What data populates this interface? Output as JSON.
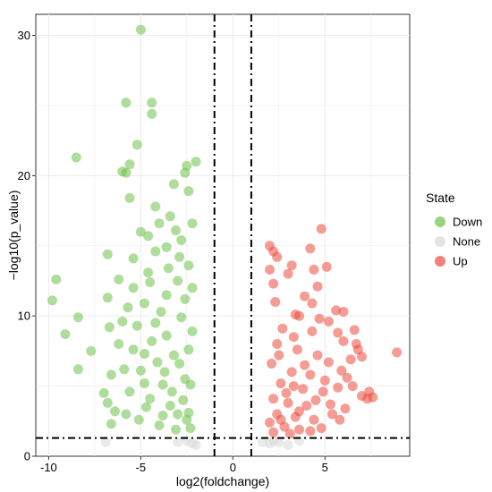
{
  "chart_data": {
    "type": "scatter",
    "xlabel": "log2(foldchange)",
    "ylabel": "−log10(p_value)",
    "xlim": [
      -10.7,
      9.6
    ],
    "ylim": [
      0,
      31.5
    ],
    "x_ticks": [
      -10,
      -5,
      0,
      5
    ],
    "y_ticks": [
      0,
      10,
      20,
      30
    ],
    "grid": true,
    "legend": {
      "title": "State",
      "position": "right"
    },
    "thresholds": {
      "x": [
        -1,
        1
      ],
      "y": 1.3
    },
    "series": [
      {
        "name": "Down",
        "color": "#6ec14a",
        "points": [
          [
            -5.0,
            30.4
          ],
          [
            -5.8,
            25.2
          ],
          [
            -4.4,
            25.2
          ],
          [
            -4.4,
            24.4
          ],
          [
            -5.2,
            22.2
          ],
          [
            -8.5,
            21.3
          ],
          [
            -2.0,
            21.0
          ],
          [
            -2.5,
            20.7
          ],
          [
            -5.6,
            20.8
          ],
          [
            -2.6,
            20.2
          ],
          [
            -3.2,
            19.4
          ],
          [
            -6.0,
            20.3
          ],
          [
            -5.8,
            20.2
          ],
          [
            -9.6,
            12.6
          ],
          [
            -9.8,
            11.1
          ],
          [
            -8.4,
            9.9
          ],
          [
            -9.1,
            8.7
          ],
          [
            -7.7,
            7.5
          ],
          [
            -8.4,
            6.2
          ],
          [
            -6.8,
            11.3
          ],
          [
            -5.6,
            18.4
          ],
          [
            -4.2,
            17.8
          ],
          [
            -4.0,
            16.6
          ],
          [
            -2.2,
            16.6
          ],
          [
            -3.4,
            17.1
          ],
          [
            -5.0,
            16.0
          ],
          [
            -4.6,
            15.7
          ],
          [
            -2.8,
            15.4
          ],
          [
            -6.8,
            14.4
          ],
          [
            -5.4,
            14.1
          ],
          [
            -4.2,
            14.6
          ],
          [
            -3.6,
            14.9
          ],
          [
            -2.4,
            13.6
          ],
          [
            -6.2,
            12.6
          ],
          [
            -5.4,
            12.0
          ],
          [
            -4.5,
            12.4
          ],
          [
            -3.0,
            12.5
          ],
          [
            -2.2,
            12.0
          ],
          [
            -5.7,
            10.6
          ],
          [
            -4.8,
            10.9
          ],
          [
            -3.6,
            11.5
          ],
          [
            -6.7,
            9.2
          ],
          [
            -6.2,
            8.0
          ],
          [
            -5.4,
            7.6
          ],
          [
            -6.6,
            5.8
          ],
          [
            -7.0,
            4.5
          ],
          [
            -6.8,
            3.8
          ],
          [
            -6.4,
            3.2
          ],
          [
            -6.6,
            2.3
          ],
          [
            -5.8,
            3.0
          ],
          [
            -5.1,
            2.6
          ],
          [
            -5.6,
            4.6
          ],
          [
            -4.8,
            5.2
          ],
          [
            -5.0,
            6.1
          ],
          [
            -5.9,
            6.2
          ],
          [
            -4.2,
            9.5
          ],
          [
            -4.4,
            8.2
          ],
          [
            -3.6,
            8.6
          ],
          [
            -2.8,
            9.9
          ],
          [
            -2.2,
            8.9
          ],
          [
            -4.1,
            6.7
          ],
          [
            -3.2,
            7.2
          ],
          [
            -2.4,
            7.6
          ],
          [
            -3.8,
            5.1
          ],
          [
            -2.6,
            5.5
          ],
          [
            -4.5,
            4.1
          ],
          [
            -3.4,
            3.6
          ],
          [
            -2.4,
            3.1
          ],
          [
            -4.0,
            2.2
          ],
          [
            -3.1,
            1.9
          ],
          [
            -2.3,
            2.0
          ],
          [
            -4.7,
            3.5
          ],
          [
            -3.7,
            6.0
          ],
          [
            -2.9,
            6.6
          ],
          [
            -2.3,
            5.1
          ],
          [
            -3.3,
            4.6
          ],
          [
            -3.8,
            2.9
          ],
          [
            -5.2,
            9.3
          ],
          [
            -3.9,
            10.3
          ],
          [
            -2.6,
            11.2
          ],
          [
            -3.5,
            13.4
          ],
          [
            -2.9,
            14.2
          ],
          [
            -4.6,
            13.1
          ],
          [
            -3.1,
            16.1
          ],
          [
            -2.4,
            18.9
          ],
          [
            -4.8,
            7.3
          ],
          [
            -6.0,
            9.6
          ],
          [
            -3.0,
            3.0
          ],
          [
            -2.7,
            4.0
          ],
          [
            -2.5,
            2.6
          ]
        ]
      },
      {
        "name": "None",
        "color": "#d9d9d9",
        "points": [
          [
            -6.9,
            1.0
          ],
          [
            -2.2,
            0.9
          ],
          [
            -2.5,
            1.1
          ],
          [
            -3.0,
            1.0
          ],
          [
            -2.0,
            0.8
          ],
          [
            2.0,
            0.9
          ],
          [
            2.5,
            1.0
          ],
          [
            3.0,
            0.8
          ],
          [
            3.6,
            1.1
          ],
          [
            2.2,
            1.1
          ],
          [
            1.6,
            1.0
          ]
        ]
      },
      {
        "name": "Up",
        "color": "#ec4a3e",
        "points": [
          [
            4.8,
            16.2
          ],
          [
            2.0,
            15.0
          ],
          [
            2.2,
            14.6
          ],
          [
            4.2,
            14.8
          ],
          [
            2.4,
            14.2
          ],
          [
            3.2,
            13.6
          ],
          [
            2.0,
            13.3
          ],
          [
            3.0,
            13.0
          ],
          [
            4.4,
            13.3
          ],
          [
            5.1,
            13.5
          ],
          [
            2.2,
            12.3
          ],
          [
            4.6,
            12.1
          ],
          [
            3.9,
            11.4
          ],
          [
            2.3,
            11.0
          ],
          [
            4.3,
            10.9
          ],
          [
            5.6,
            10.4
          ],
          [
            6.0,
            10.3
          ],
          [
            3.4,
            10.1
          ],
          [
            5.2,
            9.6
          ],
          [
            6.6,
            9.0
          ],
          [
            5.7,
            8.8
          ],
          [
            4.3,
            8.9
          ],
          [
            3.3,
            8.5
          ],
          [
            6.0,
            8.2
          ],
          [
            6.7,
            8.0
          ],
          [
            7.0,
            7.1
          ],
          [
            6.8,
            7.6
          ],
          [
            8.9,
            7.4
          ],
          [
            6.4,
            6.9
          ],
          [
            5.2,
            6.7
          ],
          [
            5.9,
            6.1
          ],
          [
            6.2,
            5.6
          ],
          [
            6.5,
            5.0
          ],
          [
            7.4,
            4.6
          ],
          [
            5.7,
            4.9
          ],
          [
            7.0,
            4.3
          ],
          [
            7.6,
            4.2
          ],
          [
            7.3,
            4.1
          ],
          [
            6.1,
            3.4
          ],
          [
            5.4,
            3.0
          ],
          [
            5.8,
            2.6
          ],
          [
            2.7,
            9.1
          ],
          [
            2.4,
            8.0
          ],
          [
            3.5,
            7.6
          ],
          [
            4.6,
            7.2
          ],
          [
            2.1,
            6.6
          ],
          [
            3.2,
            6.0
          ],
          [
            4.2,
            5.8
          ],
          [
            2.6,
            5.2
          ],
          [
            3.8,
            4.8
          ],
          [
            4.9,
            4.6
          ],
          [
            2.2,
            4.1
          ],
          [
            3.0,
            3.8
          ],
          [
            4.0,
            3.6
          ],
          [
            2.4,
            3.0
          ],
          [
            3.4,
            2.8
          ],
          [
            4.4,
            2.6
          ],
          [
            2.0,
            2.4
          ],
          [
            2.8,
            2.1
          ],
          [
            3.6,
            1.9
          ],
          [
            4.8,
            2.0
          ],
          [
            2.2,
            1.7
          ],
          [
            3.1,
            1.6
          ],
          [
            4.2,
            1.8
          ],
          [
            2.5,
            7.2
          ],
          [
            3.9,
            6.5
          ],
          [
            5.0,
            5.4
          ],
          [
            2.9,
            4.5
          ],
          [
            3.3,
            5.0
          ],
          [
            4.5,
            4.0
          ],
          [
            3.6,
            3.2
          ],
          [
            2.6,
            2.6
          ],
          [
            5.3,
            3.7
          ],
          [
            4.7,
            9.8
          ],
          [
            3.6,
            10.0
          ]
        ]
      }
    ]
  }
}
